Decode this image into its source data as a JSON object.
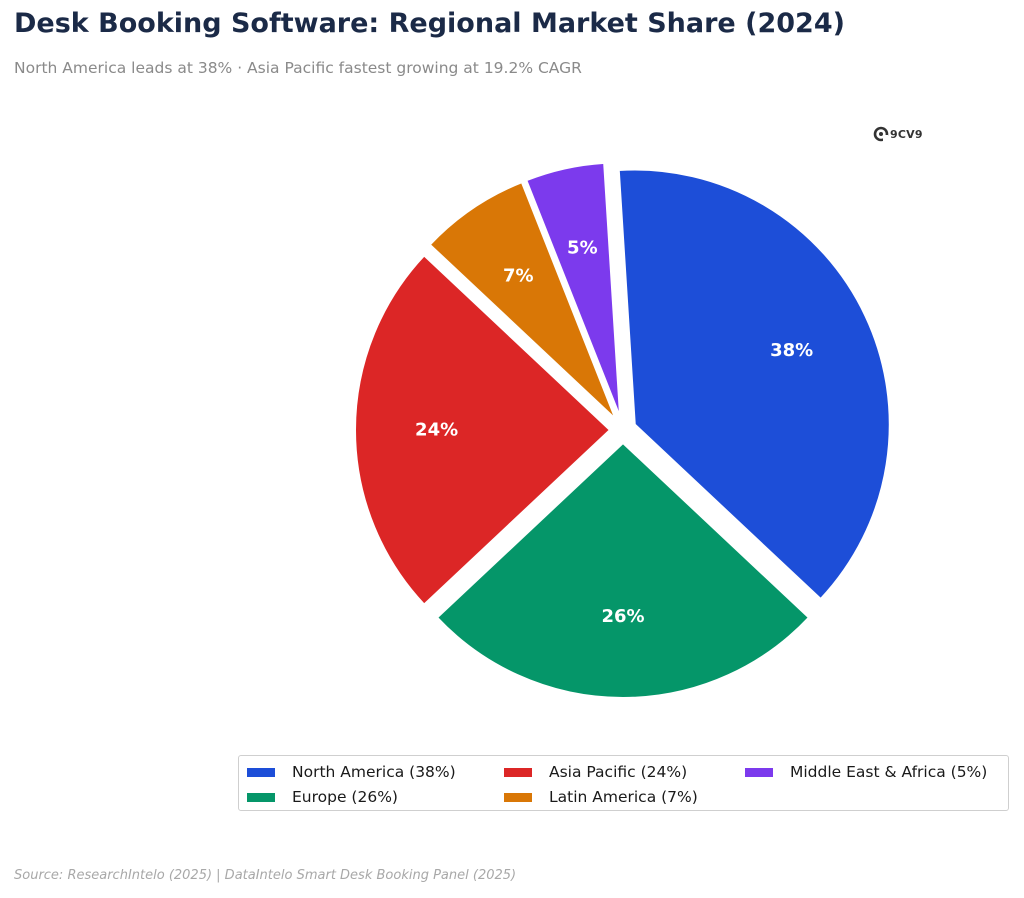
{
  "title": "Desk Booking Software: Regional Market Share (2024)",
  "subtitle": "North America leads at 38% · Asia Pacific fastest growing at 19.2% CAGR",
  "logo_text": "9CV9",
  "source": "Source: ResearchIntelo (2025) | DataIntelo Smart Desk Booking Panel (2025)",
  "chart_data": {
    "type": "pie",
    "categories": [
      "North America",
      "Europe",
      "Asia Pacific",
      "Latin America",
      "Middle East & Africa"
    ],
    "values": [
      38,
      26,
      24,
      7,
      5
    ],
    "data_labels": [
      "38%",
      "26%",
      "24%",
      "7%",
      "5%"
    ],
    "legend_labels": [
      "North America (38%)",
      "Europe (26%)",
      "Asia Pacific (24%)",
      "Latin America (7%)",
      "Middle East & Africa (5%)"
    ],
    "colors": [
      "#1d4ed8",
      "#059669",
      "#dc2626",
      "#d97706",
      "#7c3aed"
    ],
    "exploded": true,
    "legend_position": "bottom-right"
  }
}
